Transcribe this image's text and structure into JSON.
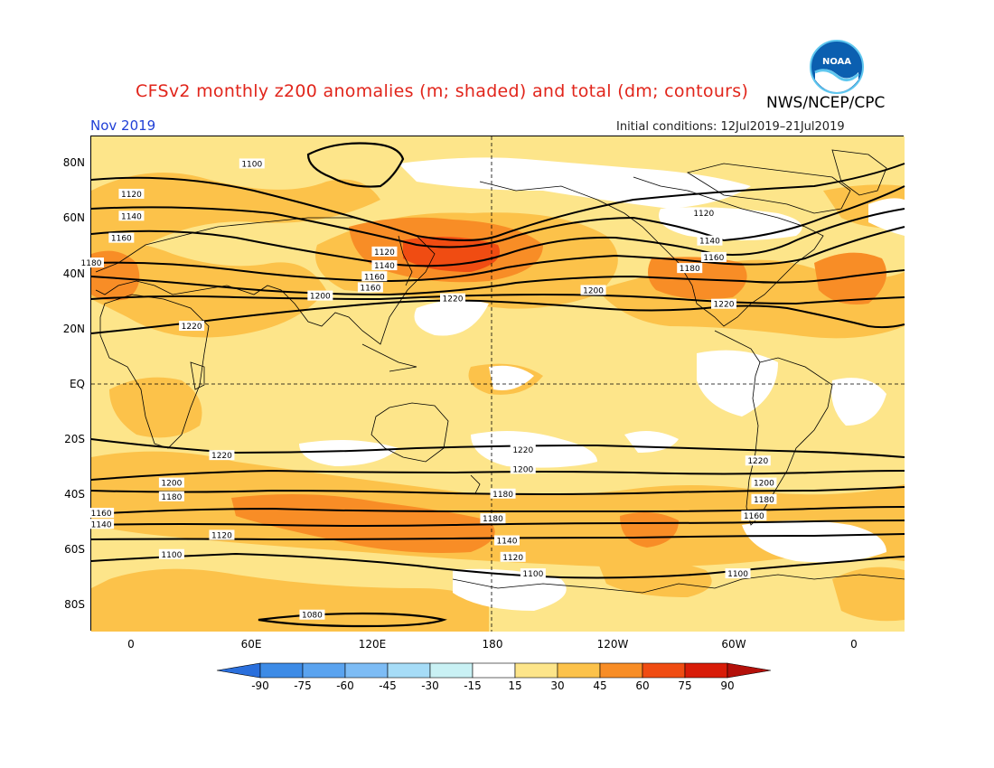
{
  "header": {
    "title": "CFSv2 monthly z200 anomalies (m; shaded) and total (dm; contours)",
    "organization": "NWS/NCEP/CPC",
    "logo_text": "NOAA",
    "period": "Nov 2019",
    "initial_conditions": "Initial conditions: 12Jul2019–21Jul2019"
  },
  "axes": {
    "lat_labels": [
      "80N",
      "60N",
      "40N",
      "20N",
      "EQ",
      "20S",
      "40S",
      "60S",
      "80S"
    ],
    "lon_labels": [
      "0",
      "60E",
      "120E",
      "180",
      "120W",
      "60W",
      "0"
    ]
  },
  "colorbar": {
    "tick_labels": [
      "-90",
      "-75",
      "-60",
      "-45",
      "-30",
      "-15",
      "15",
      "30",
      "45",
      "60",
      "75",
      "90"
    ],
    "colors": [
      "#2a6fdc",
      "#3d8be6",
      "#5aa3ef",
      "#7dbcf5",
      "#a6dcf7",
      "#c9f1f4",
      "#ffffff",
      "#fde58a",
      "#fcc24a",
      "#f88d26",
      "#f04c12",
      "#d81c08",
      "#b4100a"
    ]
  },
  "contour_labels": [
    {
      "text": "1100",
      "lon": 60,
      "lat": 80
    },
    {
      "text": "1120",
      "lon": 0,
      "lat": 69
    },
    {
      "text": "1140",
      "lon": 0,
      "lat": 61
    },
    {
      "text": "1160",
      "lon": -5,
      "lat": 53
    },
    {
      "text": "1180",
      "lon": -20,
      "lat": 44
    },
    {
      "text": "1120",
      "lon": 126,
      "lat": 48
    },
    {
      "text": "1140",
      "lon": 126,
      "lat": 43
    },
    {
      "text": "1160",
      "lon": 121,
      "lat": 39
    },
    {
      "text": "1160",
      "lon": 119,
      "lat": 35
    },
    {
      "text": "1200",
      "lon": 94,
      "lat": 32
    },
    {
      "text": "1220",
      "lon": 30,
      "lat": 21
    },
    {
      "text": "1220",
      "lon": 160,
      "lat": 31
    },
    {
      "text": "1200",
      "lon": -130,
      "lat": 34
    },
    {
      "text": "1120",
      "lon": -75,
      "lat": 62
    },
    {
      "text": "1140",
      "lon": -72,
      "lat": 52
    },
    {
      "text": "1160",
      "lon": -70,
      "lat": 46
    },
    {
      "text": "1180",
      "lon": -82,
      "lat": 42
    },
    {
      "text": "1220",
      "lon": -65,
      "lat": 29
    },
    {
      "text": "1220",
      "lon": 45,
      "lat": -26
    },
    {
      "text": "1200",
      "lon": 20,
      "lat": -36
    },
    {
      "text": "1180",
      "lon": 20,
      "lat": -41
    },
    {
      "text": "1160",
      "lon": -15,
      "lat": -47
    },
    {
      "text": "1140",
      "lon": -15,
      "lat": -51
    },
    {
      "text": "1120",
      "lon": 45,
      "lat": -55
    },
    {
      "text": "1100",
      "lon": 20,
      "lat": -62
    },
    {
      "text": "1080",
      "lon": 90,
      "lat": -84
    },
    {
      "text": "1220",
      "lon": -165,
      "lat": -24
    },
    {
      "text": "1200",
      "lon": -165,
      "lat": -31
    },
    {
      "text": "1180",
      "lon": -175,
      "lat": -40
    },
    {
      "text": "1180",
      "lon": -180,
      "lat": -49
    },
    {
      "text": "1140",
      "lon": -173,
      "lat": -57
    },
    {
      "text": "1120",
      "lon": -170,
      "lat": -63
    },
    {
      "text": "1100",
      "lon": -160,
      "lat": -69
    },
    {
      "text": "1220",
      "lon": -48,
      "lat": -28
    },
    {
      "text": "1200",
      "lon": -45,
      "lat": -36
    },
    {
      "text": "1180",
      "lon": -45,
      "lat": -42
    },
    {
      "text": "1160",
      "lon": -50,
      "lat": -48
    },
    {
      "text": "1100",
      "lon": -58,
      "lat": -69
    }
  ]
}
